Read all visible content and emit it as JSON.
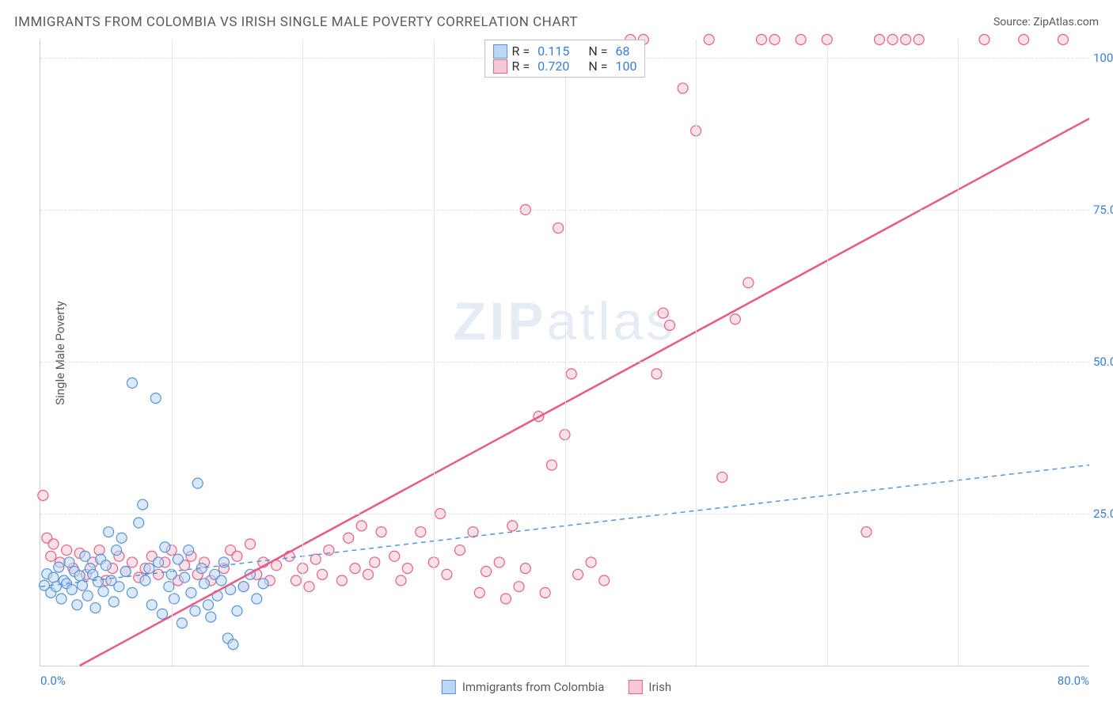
{
  "title": "IMMIGRANTS FROM COLOMBIA VS IRISH SINGLE MALE POVERTY CORRELATION CHART",
  "source": "Source: ZipAtlas.com",
  "y_axis_label": "Single Male Poverty",
  "watermark": "ZIPatlas",
  "chart": {
    "type": "scatter",
    "xlim": [
      0,
      80
    ],
    "ylim": [
      0,
      103
    ],
    "x_ticks": [
      0,
      80
    ],
    "x_tick_labels": [
      "0.0%",
      "80.0%"
    ],
    "y_ticks": [
      25,
      50,
      75,
      100
    ],
    "y_tick_labels": [
      "25.0%",
      "50.0%",
      "75.0%",
      "100.0%"
    ],
    "v_grid_positions": [
      10,
      20,
      30,
      40,
      50,
      60,
      70
    ],
    "background_color": "#ffffff",
    "grid_color": "#e0e0e0",
    "tick_label_color": "#3b7dd8",
    "marker_radius": 6.5,
    "marker_stroke_width": 1.2,
    "series": [
      {
        "name": "Immigrants from Colombia",
        "fill": "#bcd7f5",
        "stroke": "#5a94d6",
        "fill_opacity": 0.55,
        "R": "0.115",
        "N": "68",
        "trend": {
          "x1": 0,
          "y1": 13,
          "x2": 80,
          "y2": 33,
          "dash": "6,5",
          "width": 1.5,
          "color": "#5a94d6"
        },
        "points": [
          [
            0.3,
            13.2
          ],
          [
            0.5,
            15.1
          ],
          [
            0.8,
            12.0
          ],
          [
            1.0,
            14.5
          ],
          [
            1.2,
            13.0
          ],
          [
            1.4,
            16.2
          ],
          [
            1.6,
            11.0
          ],
          [
            1.8,
            14.0
          ],
          [
            2.0,
            13.5
          ],
          [
            2.2,
            17.0
          ],
          [
            2.4,
            12.5
          ],
          [
            2.6,
            15.5
          ],
          [
            2.8,
            10.0
          ],
          [
            3.0,
            14.8
          ],
          [
            3.2,
            13.2
          ],
          [
            3.4,
            18.0
          ],
          [
            3.6,
            11.5
          ],
          [
            3.8,
            16.0
          ],
          [
            4.0,
            15.0
          ],
          [
            4.2,
            9.5
          ],
          [
            4.4,
            13.8
          ],
          [
            4.6,
            17.5
          ],
          [
            4.8,
            12.2
          ],
          [
            5.0,
            16.5
          ],
          [
            5.2,
            22.0
          ],
          [
            5.4,
            14.0
          ],
          [
            5.6,
            10.5
          ],
          [
            5.8,
            19.0
          ],
          [
            6.0,
            13.0
          ],
          [
            6.2,
            21.0
          ],
          [
            6.5,
            15.5
          ],
          [
            7.0,
            46.5
          ],
          [
            7.0,
            12.0
          ],
          [
            7.5,
            23.5
          ],
          [
            7.8,
            26.5
          ],
          [
            8.0,
            14.0
          ],
          [
            8.3,
            16.0
          ],
          [
            8.5,
            10.0
          ],
          [
            8.8,
            44.0
          ],
          [
            9.0,
            17.0
          ],
          [
            9.3,
            8.5
          ],
          [
            9.5,
            19.5
          ],
          [
            9.8,
            13.0
          ],
          [
            10.0,
            15.0
          ],
          [
            10.2,
            11.0
          ],
          [
            10.5,
            17.5
          ],
          [
            10.8,
            7.0
          ],
          [
            11.0,
            14.5
          ],
          [
            11.3,
            19.0
          ],
          [
            11.5,
            12.0
          ],
          [
            11.8,
            9.0
          ],
          [
            12.0,
            30.0
          ],
          [
            12.3,
            16.0
          ],
          [
            12.5,
            13.5
          ],
          [
            12.8,
            10.0
          ],
          [
            13.0,
            8.0
          ],
          [
            13.3,
            15.0
          ],
          [
            13.5,
            11.5
          ],
          [
            13.8,
            14.0
          ],
          [
            14.0,
            17.0
          ],
          [
            14.3,
            4.5
          ],
          [
            14.5,
            12.5
          ],
          [
            14.7,
            3.5
          ],
          [
            15.0,
            9.0
          ],
          [
            15.5,
            13.0
          ],
          [
            16.0,
            15.0
          ],
          [
            16.5,
            11.0
          ],
          [
            17.0,
            13.5
          ]
        ]
      },
      {
        "name": "Irish",
        "fill": "#f6c9d5",
        "stroke": "#e46188",
        "fill_opacity": 0.55,
        "R": "0.720",
        "N": "100",
        "trend": {
          "x1": 3,
          "y1": 0,
          "x2": 80,
          "y2": 90,
          "dash": "",
          "width": 2.5,
          "color": "#e85a85"
        },
        "points": [
          [
            0.2,
            28.0
          ],
          [
            0.5,
            21.0
          ],
          [
            0.8,
            18.0
          ],
          [
            1.0,
            20.0
          ],
          [
            1.5,
            17.0
          ],
          [
            2.0,
            19.0
          ],
          [
            2.5,
            16.0
          ],
          [
            3.0,
            18.5
          ],
          [
            3.5,
            15.0
          ],
          [
            4.0,
            17.0
          ],
          [
            4.5,
            19.0
          ],
          [
            5.0,
            14.0
          ],
          [
            5.5,
            16.0
          ],
          [
            6.0,
            18.0
          ],
          [
            6.5,
            15.5
          ],
          [
            7.0,
            17.0
          ],
          [
            7.5,
            14.5
          ],
          [
            8.0,
            16.0
          ],
          [
            8.5,
            18.0
          ],
          [
            9.0,
            15.0
          ],
          [
            9.5,
            17.0
          ],
          [
            10.0,
            19.0
          ],
          [
            10.5,
            14.0
          ],
          [
            11.0,
            16.5
          ],
          [
            11.5,
            18.0
          ],
          [
            12.0,
            15.0
          ],
          [
            12.5,
            17.0
          ],
          [
            13.0,
            14.0
          ],
          [
            14.0,
            16.0
          ],
          [
            14.5,
            19.0
          ],
          [
            15.0,
            18.0
          ],
          [
            15.5,
            13.0
          ],
          [
            16.0,
            20.0
          ],
          [
            16.5,
            15.0
          ],
          [
            17.0,
            17.0
          ],
          [
            17.5,
            14.0
          ],
          [
            18.0,
            16.5
          ],
          [
            19.0,
            18.0
          ],
          [
            19.5,
            14.0
          ],
          [
            20.0,
            16.0
          ],
          [
            20.5,
            13.0
          ],
          [
            21.0,
            17.5
          ],
          [
            21.5,
            15.0
          ],
          [
            22.0,
            19.0
          ],
          [
            23.0,
            14.0
          ],
          [
            23.5,
            21.0
          ],
          [
            24.0,
            16.0
          ],
          [
            24.5,
            23.0
          ],
          [
            25.0,
            15.0
          ],
          [
            25.5,
            17.0
          ],
          [
            26.0,
            22.0
          ],
          [
            27.0,
            18.0
          ],
          [
            27.5,
            14.0
          ],
          [
            28.0,
            16.0
          ],
          [
            29.0,
            22.0
          ],
          [
            30.0,
            17.0
          ],
          [
            30.5,
            25.0
          ],
          [
            31.0,
            15.0
          ],
          [
            32.0,
            19.0
          ],
          [
            33.0,
            22.0
          ],
          [
            33.5,
            12.0
          ],
          [
            34.0,
            15.5
          ],
          [
            35.0,
            17.0
          ],
          [
            35.5,
            11.0
          ],
          [
            36.0,
            23.0
          ],
          [
            36.5,
            13.0
          ],
          [
            37.0,
            16.0
          ],
          [
            37.0,
            75.0
          ],
          [
            38.0,
            41.0
          ],
          [
            38.5,
            12.0
          ],
          [
            39.0,
            33.0
          ],
          [
            39.5,
            72.0
          ],
          [
            40.0,
            38.0
          ],
          [
            40.5,
            48.0
          ],
          [
            41.0,
            15.0
          ],
          [
            42.0,
            17.0
          ],
          [
            43.0,
            14.0
          ],
          [
            45.0,
            103.0
          ],
          [
            46.0,
            103.0
          ],
          [
            47.0,
            48.0
          ],
          [
            47.5,
            58.0
          ],
          [
            48.0,
            56.0
          ],
          [
            49.0,
            95.0
          ],
          [
            50.0,
            88.0
          ],
          [
            51.0,
            103.0
          ],
          [
            52.0,
            31.0
          ],
          [
            53.0,
            57.0
          ],
          [
            54.0,
            63.0
          ],
          [
            55.0,
            103.0
          ],
          [
            56.0,
            103.0
          ],
          [
            58.0,
            103.0
          ],
          [
            60.0,
            103.0
          ],
          [
            63.0,
            22.0
          ],
          [
            64.0,
            103.0
          ],
          [
            65.0,
            103.0
          ],
          [
            66.0,
            103.0
          ],
          [
            67.0,
            103.0
          ],
          [
            72.0,
            103.0
          ],
          [
            75.0,
            103.0
          ],
          [
            78.0,
            103.0
          ]
        ]
      }
    ]
  },
  "legend_top": {
    "rows": [
      {
        "swatch_fill": "#bcd7f5",
        "swatch_stroke": "#5a94d6",
        "r_label": "R = ",
        "r_val": "0.115",
        "n_label": "N = ",
        "n_val": "68"
      },
      {
        "swatch_fill": "#f6c9d5",
        "swatch_stroke": "#e46188",
        "r_label": "R = ",
        "r_val": "0.720",
        "n_label": "N = ",
        "n_val": "100"
      }
    ]
  },
  "legend_bottom": {
    "items": [
      {
        "swatch_fill": "#bcd7f5",
        "swatch_stroke": "#5a94d6",
        "label": "Immigrants from Colombia"
      },
      {
        "swatch_fill": "#f6c9d5",
        "swatch_stroke": "#e46188",
        "label": "Irish"
      }
    ]
  }
}
